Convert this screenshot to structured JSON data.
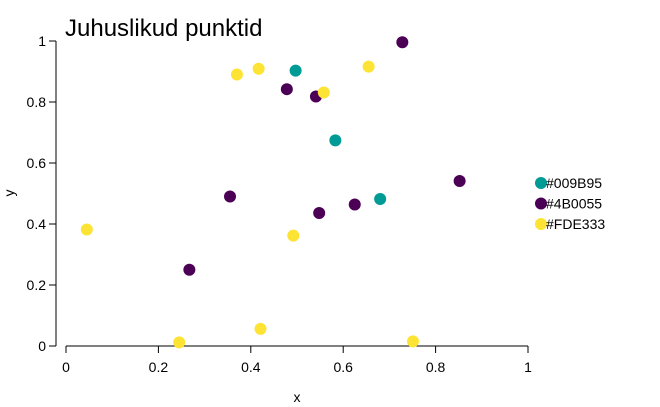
{
  "chart_data": {
    "type": "scatter",
    "title": "Juhuslikud punktid",
    "xlabel": "x",
    "ylabel": "y",
    "xlim": [
      0,
      1
    ],
    "ylim": [
      0,
      1
    ],
    "xticks": [
      "0",
      "0.2",
      "0.4",
      "0.6",
      "0.8",
      "1"
    ],
    "yticks": [
      "0",
      "0.2",
      "0.4",
      "0.6",
      "0.8",
      "1"
    ],
    "grid": false,
    "legend_position": "right",
    "series": [
      {
        "name": "#009B95",
        "color": "#009B95",
        "points": [
          {
            "x": 0.497,
            "y": 0.903
          },
          {
            "x": 0.583,
            "y": 0.674
          },
          {
            "x": 0.68,
            "y": 0.482
          }
        ]
      },
      {
        "name": "#4B0055",
        "color": "#4B0055",
        "points": [
          {
            "x": 0.728,
            "y": 0.996
          },
          {
            "x": 0.478,
            "y": 0.842
          },
          {
            "x": 0.541,
            "y": 0.818
          },
          {
            "x": 0.852,
            "y": 0.541
          },
          {
            "x": 0.355,
            "y": 0.49
          },
          {
            "x": 0.625,
            "y": 0.464
          },
          {
            "x": 0.548,
            "y": 0.436
          },
          {
            "x": 0.267,
            "y": 0.25
          }
        ]
      },
      {
        "name": "#FDE333",
        "color": "#FDE333",
        "points": [
          {
            "x": 0.37,
            "y": 0.89
          },
          {
            "x": 0.417,
            "y": 0.909
          },
          {
            "x": 0.558,
            "y": 0.831
          },
          {
            "x": 0.655,
            "y": 0.916
          },
          {
            "x": 0.045,
            "y": 0.382
          },
          {
            "x": 0.492,
            "y": 0.362
          },
          {
            "x": 0.421,
            "y": 0.056
          },
          {
            "x": 0.245,
            "y": 0.012
          },
          {
            "x": 0.751,
            "y": 0.015
          }
        ]
      }
    ]
  }
}
